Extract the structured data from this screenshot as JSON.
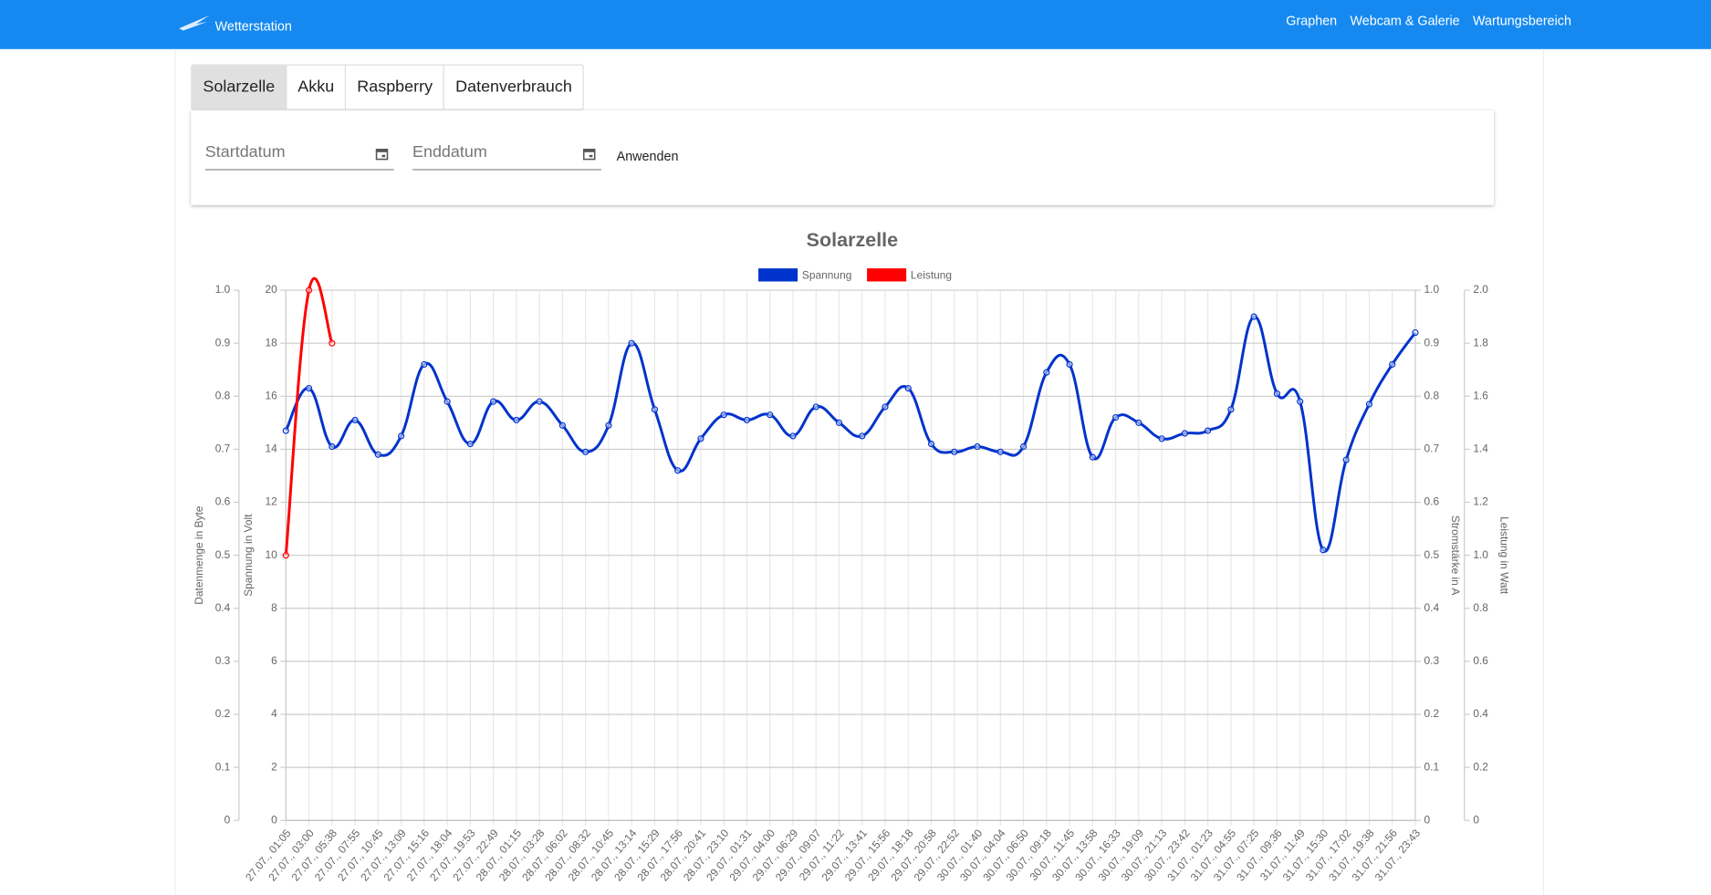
{
  "nav": {
    "brand": "Wetterstation",
    "links": [
      "Graphen",
      "Webcam & Galerie",
      "Wartungsbereich"
    ]
  },
  "tabs": [
    "Solarzelle",
    "Akku",
    "Raspberry",
    "Datenverbrauch"
  ],
  "filter": {
    "start": "Startdatum",
    "end": "Enddatum",
    "apply": "Anwenden"
  },
  "chart_data": {
    "type": "line",
    "title": "Solarzelle",
    "grid": true,
    "legend": "top",
    "categories": [
      "27.07., 01:05",
      "27.07., 03:00",
      "27.07., 05:38",
      "27.07., 07:55",
      "27.07., 10:45",
      "27.07., 13:09",
      "27.07., 15:16",
      "27.07., 18:04",
      "27.07., 19:53",
      "27.07., 22:49",
      "28.07., 01:15",
      "28.07., 03:28",
      "28.07., 06:02",
      "28.07., 08:32",
      "28.07., 10:45",
      "28.07., 13:14",
      "28.07., 15:29",
      "28.07., 17:56",
      "28.07., 20:41",
      "28.07., 23:10",
      "29.07., 01:31",
      "29.07., 04:00",
      "29.07., 06:29",
      "29.07., 09:07",
      "29.07., 11:22",
      "29.07., 13:41",
      "29.07., 15:56",
      "29.07., 18:18",
      "29.07., 20:58",
      "29.07., 22:52",
      "30.07., 01:40",
      "30.07., 04:04",
      "30.07., 06:50",
      "30.07., 09:18",
      "30.07., 11:45",
      "30.07., 13:58",
      "30.07., 16:33",
      "30.07., 19:09",
      "30.07., 21:13",
      "30.07., 23:42",
      "31.07., 01:23",
      "31.07., 04:55",
      "31.07., 07:25",
      "31.07., 09:36",
      "31.07., 11:49",
      "31.07., 15:30",
      "31.07., 17:02",
      "31.07., 19:38",
      "31.07., 21:56",
      "31.07., 23:43"
    ],
    "axes": [
      {
        "label": "Datenmenge in Byte",
        "position": "left",
        "lim": [
          0,
          1
        ],
        "ticks": [
          0,
          0.1,
          0.2,
          0.3,
          0.4,
          0.5,
          0.6,
          0.7,
          0.8,
          0.9,
          {
            "value": 1,
            "label": "1.0"
          }
        ]
      },
      {
        "label": "Spannung in Volt",
        "position": "left",
        "lim": [
          0,
          20
        ],
        "ticks": [
          0,
          2,
          4,
          6,
          8,
          10,
          12,
          14,
          16,
          18,
          20
        ]
      },
      {
        "label": "Stromstärke in A",
        "position": "right",
        "lim": [
          0,
          1
        ],
        "ticks": [
          0,
          0.1,
          0.2,
          0.3,
          0.4,
          0.5,
          0.6,
          0.7,
          0.8,
          0.9,
          {
            "value": 1,
            "label": "1.0"
          }
        ]
      },
      {
        "label": "Leistung in Watt",
        "position": "right",
        "lim": [
          0,
          2
        ],
        "ticks": [
          0,
          0.2,
          0.4,
          0.6,
          0.8,
          {
            "value": 1,
            "label": "1.0"
          },
          1.2,
          1.4,
          1.6,
          1.8,
          {
            "value": 2,
            "label": "2.0"
          }
        ]
      }
    ],
    "series": [
      {
        "name": "Spannung",
        "color": "#0033cc",
        "axis": 1,
        "values": [
          14.7,
          16.3,
          14.1,
          15.1,
          13.8,
          14.5,
          17.2,
          15.8,
          14.2,
          15.8,
          15.1,
          15.8,
          14.9,
          13.9,
          14.9,
          18.0,
          15.5,
          13.2,
          14.4,
          15.3,
          15.1,
          15.3,
          14.5,
          15.6,
          15.0,
          14.5,
          15.6,
          16.3,
          14.2,
          13.9,
          14.1,
          13.9,
          14.1,
          16.9,
          17.2,
          13.7,
          15.2,
          15.0,
          14.4,
          14.6,
          14.7,
          15.5,
          19.0,
          16.1,
          15.8,
          10.2,
          13.6,
          15.7,
          17.2,
          18.4
        ]
      },
      {
        "name": "Leistung",
        "color": "#ff0000",
        "axis": 3,
        "values": [
          1.0,
          2.0,
          1.8,
          null,
          null,
          null,
          null,
          null,
          null,
          null,
          null,
          null,
          null,
          null,
          null,
          null,
          null,
          null,
          null,
          null,
          null,
          null,
          null,
          null,
          null,
          null,
          null,
          null,
          null,
          null,
          null,
          null,
          null,
          null,
          null,
          null,
          null,
          null,
          null,
          null,
          null,
          null,
          null,
          null,
          null,
          null,
          null,
          null,
          null,
          null
        ]
      }
    ]
  }
}
